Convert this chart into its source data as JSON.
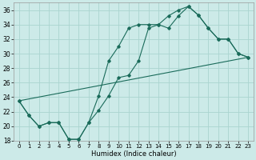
{
  "xlabel": "Humidex (Indice chaleur)",
  "bg_color": "#cceae8",
  "grid_color": "#aad4d0",
  "line_color": "#1a6b5a",
  "xlim": [
    -0.5,
    23.5
  ],
  "ylim": [
    18,
    37
  ],
  "yticks": [
    18,
    20,
    22,
    24,
    26,
    28,
    30,
    32,
    34,
    36
  ],
  "xticks": [
    0,
    1,
    2,
    3,
    4,
    5,
    6,
    7,
    8,
    9,
    10,
    11,
    12,
    13,
    14,
    15,
    16,
    17,
    18,
    19,
    20,
    21,
    22,
    23
  ],
  "line1_x": [
    0,
    1,
    2,
    3,
    4,
    5,
    6,
    7,
    8,
    9,
    10,
    11,
    12,
    13,
    14,
    15,
    16,
    17,
    18,
    19,
    20,
    21,
    22,
    23
  ],
  "line1_y": [
    23.5,
    21.5,
    20.0,
    20.5,
    20.5,
    18.2,
    18.2,
    20.5,
    24.2,
    29.0,
    31.0,
    33.5,
    34.0,
    34.0,
    34.0,
    35.2,
    36.0,
    36.5,
    35.3,
    33.5,
    32.0,
    32.0,
    30.0,
    29.5
  ],
  "line2_x": [
    0,
    1,
    2,
    3,
    4,
    5,
    6,
    7,
    8,
    9,
    10,
    11,
    12,
    13,
    14,
    15,
    16,
    17,
    18,
    19,
    20,
    21,
    22,
    23
  ],
  "line2_y": [
    23.5,
    21.5,
    20.0,
    20.5,
    20.5,
    18.2,
    18.2,
    20.5,
    22.2,
    24.2,
    26.7,
    27.0,
    29.0,
    33.5,
    34.0,
    33.5,
    35.2,
    36.5,
    35.3,
    33.5,
    32.0,
    32.0,
    30.0,
    29.5
  ],
  "line3_x": [
    0,
    23
  ],
  "line3_y": [
    23.5,
    29.5
  ]
}
